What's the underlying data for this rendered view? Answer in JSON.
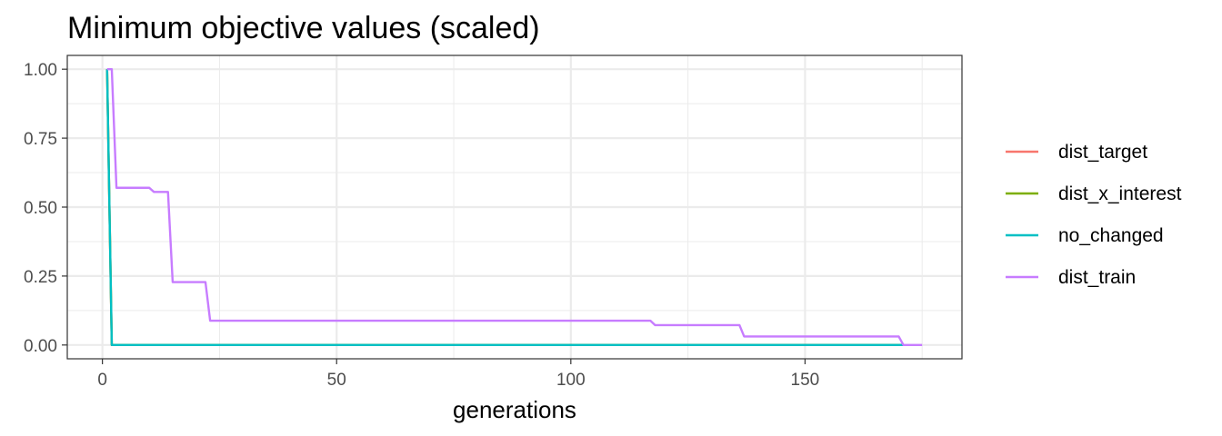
{
  "chart_data": {
    "type": "line",
    "title": "Minimum objective values (scaled)",
    "xlabel": "generations",
    "ylabel": "",
    "xlim": [
      -7.5,
      183.5
    ],
    "ylim": [
      -0.05,
      1.05
    ],
    "x_ticks": [
      0,
      50,
      100,
      150
    ],
    "y_ticks": [
      0,
      0.25,
      0.5,
      0.75,
      1
    ],
    "x_tick_labels": [
      "0",
      "50",
      "100",
      "150"
    ],
    "y_tick_labels": [
      "0.00",
      "0.25",
      "0.50",
      "0.75",
      "1.00"
    ],
    "grid": true,
    "legend_position": "right",
    "series": [
      {
        "name": "dist_target",
        "color": "#F8766D",
        "points": [
          [
            1,
            1.0
          ],
          [
            2,
            0.0
          ],
          [
            171,
            0.0
          ]
        ]
      },
      {
        "name": "dist_x_interest",
        "color": "#7CAE00",
        "points": [
          [
            1,
            1.0
          ],
          [
            2,
            0.0
          ],
          [
            171,
            0.0
          ]
        ]
      },
      {
        "name": "no_changed",
        "color": "#00BFC4",
        "points": [
          [
            1,
            1.0
          ],
          [
            2,
            0.0
          ],
          [
            171,
            0.0
          ]
        ]
      },
      {
        "name": "dist_train",
        "color": "#C77CFF",
        "points": [
          [
            1,
            1.0
          ],
          [
            2,
            1.0
          ],
          [
            3,
            0.57
          ],
          [
            10,
            0.57
          ],
          [
            11,
            0.555
          ],
          [
            14,
            0.555
          ],
          [
            15,
            0.228
          ],
          [
            22,
            0.228
          ],
          [
            23,
            0.088
          ],
          [
            117,
            0.088
          ],
          [
            118,
            0.072
          ],
          [
            136,
            0.072
          ],
          [
            137,
            0.031
          ],
          [
            170,
            0.031
          ],
          [
            171,
            0.0
          ],
          [
            175,
            0.0
          ]
        ]
      }
    ]
  }
}
